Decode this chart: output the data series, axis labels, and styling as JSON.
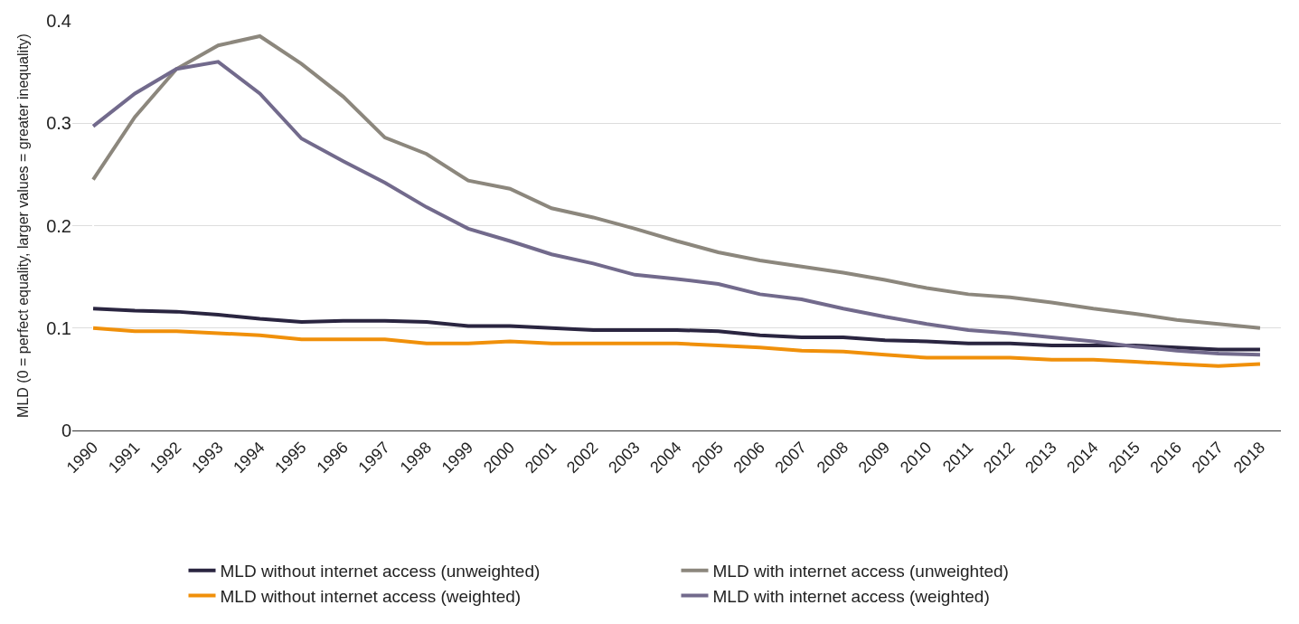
{
  "chart_data": {
    "type": "line",
    "ylabel": "MLD (0 = perfect equality, larger values = greater inequality)",
    "categories": [
      "1990",
      "1991",
      "1992",
      "1993",
      "1994",
      "1995",
      "1996",
      "1997",
      "1998",
      "1999",
      "2000",
      "2001",
      "2002",
      "2003",
      "2004",
      "2005",
      "2006",
      "2007",
      "2008",
      "2009",
      "2010",
      "2011",
      "2012",
      "2013",
      "2014",
      "2015",
      "2016",
      "2017",
      "2018"
    ],
    "series": [
      {
        "name": "MLD without internet access (unweighted)",
        "color": "#2a2540",
        "values": [
          0.119,
          0.117,
          0.116,
          0.113,
          0.109,
          0.106,
          0.107,
          0.107,
          0.106,
          0.102,
          0.102,
          0.1,
          0.098,
          0.098,
          0.098,
          0.097,
          0.093,
          0.091,
          0.091,
          0.088,
          0.087,
          0.085,
          0.085,
          0.083,
          0.083,
          0.083,
          0.081,
          0.079,
          0.079
        ]
      },
      {
        "name": "MLD with internet access (unweighted)",
        "color": "#8c877d",
        "values": [
          0.245,
          0.306,
          0.353,
          0.376,
          0.385,
          0.358,
          0.326,
          0.286,
          0.27,
          0.244,
          0.236,
          0.217,
          0.208,
          0.197,
          0.185,
          0.174,
          0.166,
          0.16,
          0.154,
          0.147,
          0.139,
          0.133,
          0.13,
          0.125,
          0.119,
          0.114,
          0.108,
          0.104,
          0.1
        ]
      },
      {
        "name": "MLD without internet access (weighted)",
        "color": "#f0900a",
        "values": [
          0.1,
          0.097,
          0.097,
          0.095,
          0.093,
          0.089,
          0.089,
          0.089,
          0.085,
          0.085,
          0.087,
          0.085,
          0.085,
          0.085,
          0.085,
          0.083,
          0.081,
          0.078,
          0.077,
          0.074,
          0.071,
          0.071,
          0.071,
          0.069,
          0.069,
          0.067,
          0.065,
          0.063,
          0.065
        ]
      },
      {
        "name": "MLD with internet access (weighted)",
        "color": "#726a8c",
        "values": [
          0.297,
          0.329,
          0.353,
          0.36,
          0.329,
          0.285,
          0.263,
          0.242,
          0.218,
          0.197,
          0.185,
          0.172,
          0.163,
          0.152,
          0.148,
          0.143,
          0.133,
          0.128,
          0.119,
          0.111,
          0.104,
          0.098,
          0.095,
          0.091,
          0.087,
          0.082,
          0.078,
          0.075,
          0.074
        ]
      }
    ],
    "ylim": [
      0,
      0.4
    ],
    "yticks": [
      0,
      0.1,
      0.2,
      0.3,
      0.4
    ],
    "grid": "y",
    "legend": "bottom",
    "line_style": "solid"
  }
}
